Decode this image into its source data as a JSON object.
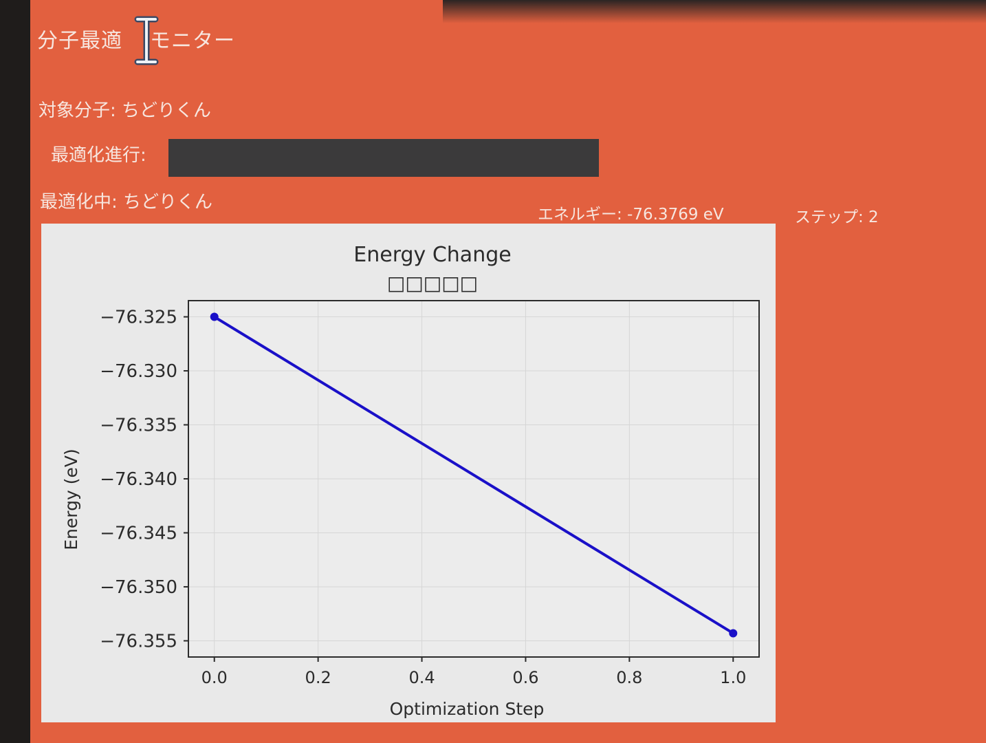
{
  "app": {
    "title_left": "分子最適",
    "title_right": "モニター",
    "cursor_icon": "text-cursor-ibeam-icon"
  },
  "target": {
    "label": "対象分子:",
    "molecule": "ちどりくん"
  },
  "progress": {
    "label": "最適化進行:",
    "fraction": 1.0
  },
  "status": {
    "label": "最適化中:",
    "molecule": "ちどりくん"
  },
  "readouts": {
    "energy": "エネルギー: -76.3769 eV",
    "step": "ステップ: 2"
  },
  "colors": {
    "app_background": "#e2603f",
    "progress_fill": "#3b3a3b",
    "line": "#1a10c8",
    "panel": "#e9e9e9"
  },
  "chart_data": {
    "type": "line",
    "title": "Energy Change",
    "subtitle": "□□□□□",
    "xlabel": "Optimization Step",
    "ylabel": "Energy (eV)",
    "x": [
      0.0,
      1.0
    ],
    "series": [
      {
        "values": [
          -76.325,
          -76.3543
        ]
      }
    ],
    "xlim": [
      -0.05,
      1.05
    ],
    "ylim": [
      -76.3565,
      -76.3235
    ],
    "xticks": [
      0.0,
      0.2,
      0.4,
      0.6,
      0.8,
      1.0
    ],
    "xtick_labels": [
      "0.0",
      "0.2",
      "0.4",
      "0.6",
      "0.8",
      "1.0"
    ],
    "yticks": [
      -76.325,
      -76.33,
      -76.335,
      -76.34,
      -76.345,
      -76.35,
      -76.355
    ],
    "ytick_labels": [
      "−76.325",
      "−76.330",
      "−76.335",
      "−76.340",
      "−76.345",
      "−76.350",
      "−76.355"
    ],
    "grid": true,
    "markers": true
  }
}
